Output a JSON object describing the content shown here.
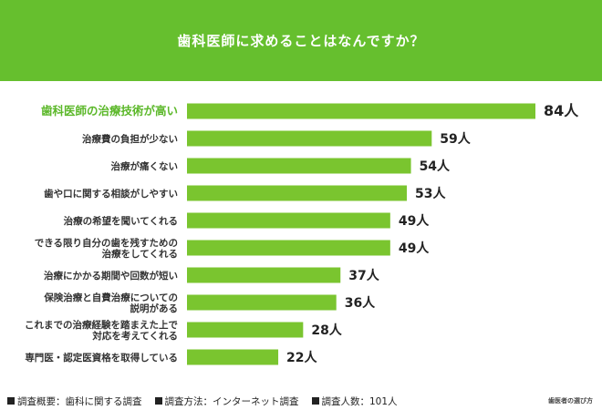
{
  "header": {
    "title": "歯科医師に求めることはなんですか？"
  },
  "chart_data": {
    "type": "bar",
    "orientation": "horizontal",
    "categories": [
      [
        "歯科医師の治療技術が高い"
      ],
      [
        "治療費の負担が少ない"
      ],
      [
        "治療が痛くない"
      ],
      [
        "歯や口に関する相談がしやすい"
      ],
      [
        "治療の希望を聞いてくれる"
      ],
      [
        "できる限り自分の歯を残すための",
        "治療をしてくれる"
      ],
      [
        "治療にかかる期間や回数が短い"
      ],
      [
        "保険治療と自費治療についての",
        "説明がある"
      ],
      [
        "これまでの治療経験を踏まえた上で",
        "対応を考えてくれる"
      ],
      [
        "専門医・認定医資格を取得している"
      ]
    ],
    "values": [
      84,
      59,
      54,
      53,
      49,
      49,
      37,
      36,
      28,
      22
    ],
    "value_labels": [
      "84人",
      "59人",
      "54人",
      "53人",
      "49人",
      "49人",
      "37人",
      "36人",
      "28人",
      "22人"
    ],
    "xlim": [
      0,
      84
    ],
    "highlight_index": 0,
    "grid": false
  },
  "colors": {
    "header_bg": "#66bf2e",
    "bar": "#7ac52f",
    "highlight_label": "#5cb82a",
    "text": "#222222"
  },
  "footer": {
    "items": [
      "調査概要：歯科に関する調査",
      "調査方法：インターネット調査",
      "調査人数：101人"
    ],
    "brand": "歯医者の選び方"
  }
}
